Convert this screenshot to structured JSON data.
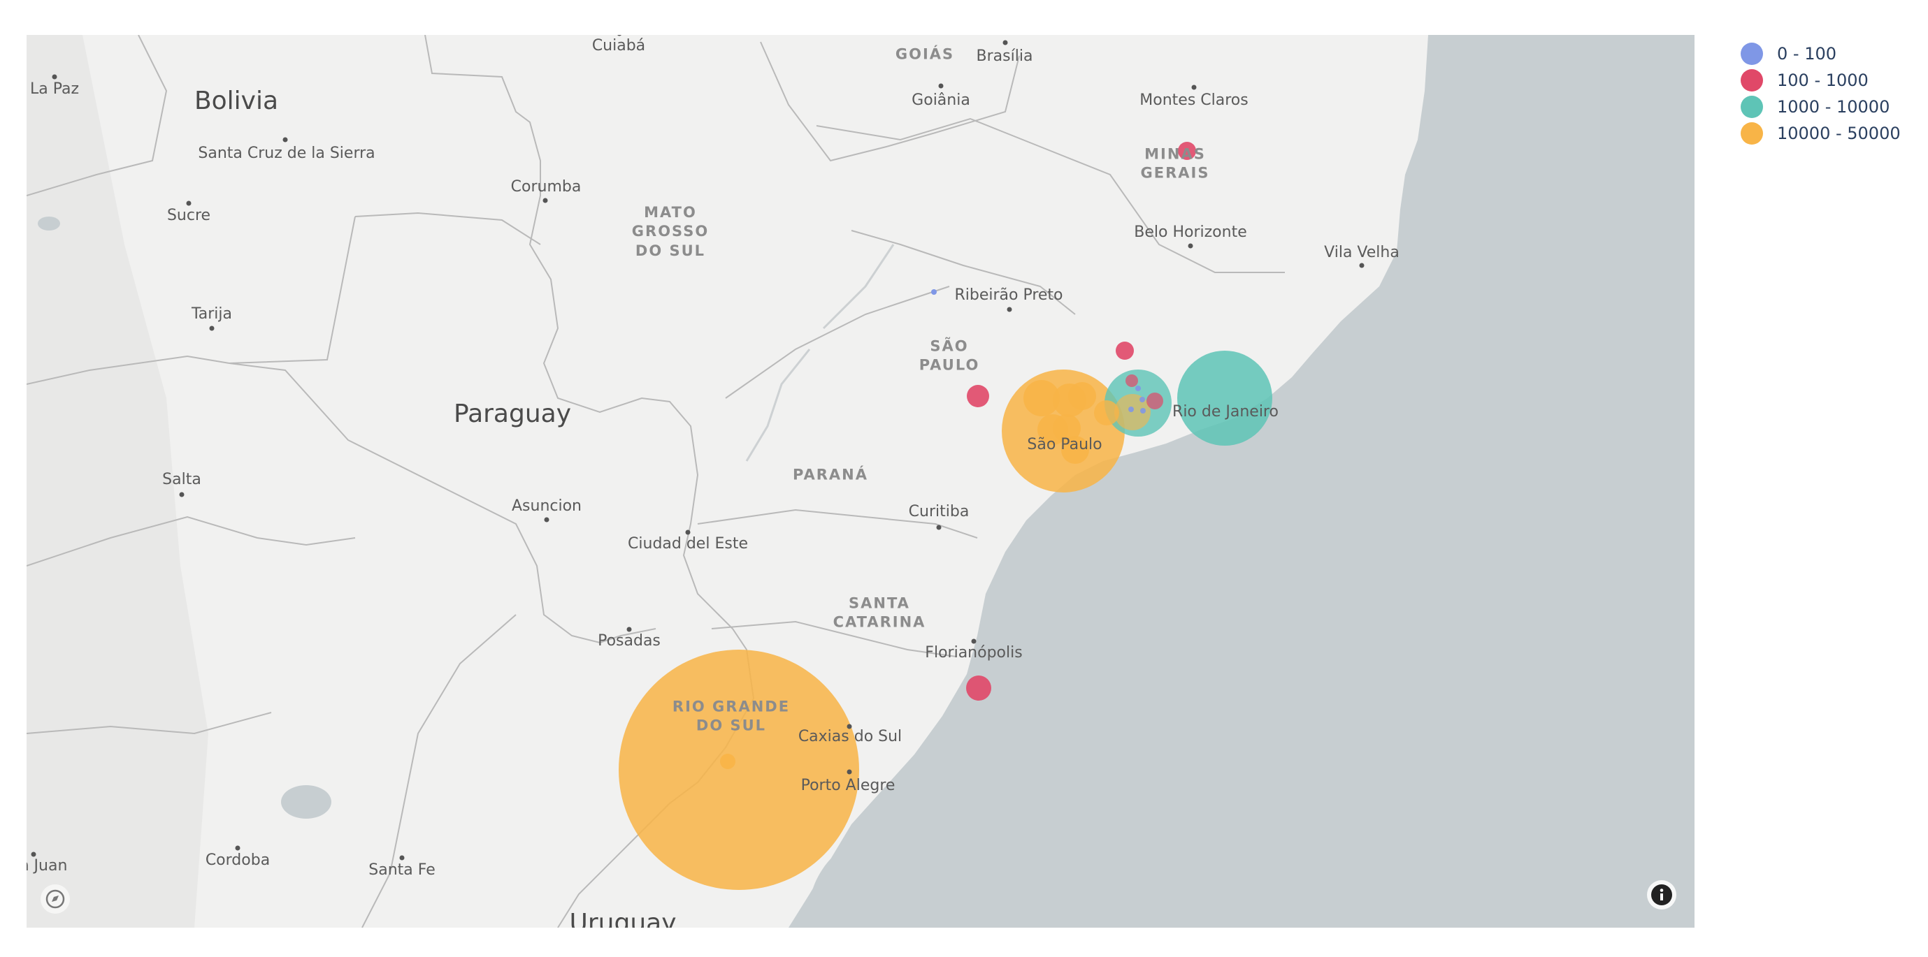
{
  "map": {
    "country_labels": [
      {
        "id": "bolivia",
        "text": "Bolivia"
      },
      {
        "id": "paraguay",
        "text": "Paraguay"
      },
      {
        "id": "uruguay",
        "text": "Uruguay"
      }
    ],
    "state_labels": [
      {
        "id": "goias",
        "text": "GOIÁS"
      },
      {
        "id": "minas-gerais",
        "text": "MINAS\nGERAIS"
      },
      {
        "id": "mato-grosso-do-sul",
        "text": "MATO\nGROSSO\nDO SUL"
      },
      {
        "id": "sao-paulo-state",
        "text": "SÃO\nPAULO"
      },
      {
        "id": "parana",
        "text": "PARANÁ"
      },
      {
        "id": "santa-catarina",
        "text": "SANTA\nCATARINA"
      },
      {
        "id": "rio-grande-do-sul",
        "text": "RIO GRANDE\nDO SUL"
      }
    ],
    "city_labels": [
      {
        "id": "cuiaba",
        "text": "Cuiabá"
      },
      {
        "id": "brasilia",
        "text": "Brasília"
      },
      {
        "id": "la-paz",
        "text": "La Paz"
      },
      {
        "id": "goiania",
        "text": "Goiânia"
      },
      {
        "id": "montes-claros",
        "text": "Montes Claros"
      },
      {
        "id": "santa-cruz",
        "text": "Santa Cruz de la Sierra"
      },
      {
        "id": "corumba",
        "text": "Corumba"
      },
      {
        "id": "sucre",
        "text": "Sucre"
      },
      {
        "id": "belo-horizonte",
        "text": "Belo Horizonte"
      },
      {
        "id": "vila-velha",
        "text": "Vila Velha"
      },
      {
        "id": "ribeirao-preto",
        "text": "Ribeirão Preto"
      },
      {
        "id": "tarija",
        "text": "Tarija"
      },
      {
        "id": "rio-de-janeiro",
        "text": "Rio de Janeiro"
      },
      {
        "id": "sao-paulo",
        "text": "São Paulo"
      },
      {
        "id": "salta",
        "text": "Salta"
      },
      {
        "id": "asuncion",
        "text": "Asuncion"
      },
      {
        "id": "curitiba",
        "text": "Curitiba"
      },
      {
        "id": "ciudad-del-este",
        "text": "Ciudad del Este"
      },
      {
        "id": "posadas",
        "text": "Posadas"
      },
      {
        "id": "florianopolis",
        "text": "Florianópolis"
      },
      {
        "id": "caxias-do-sul",
        "text": "Caxias do Sul"
      },
      {
        "id": "porto-alegre",
        "text": "Porto Alegre"
      },
      {
        "id": "san-juan",
        "text": "n Juan"
      },
      {
        "id": "cordoba",
        "text": "Cordoba"
      },
      {
        "id": "santa-fe",
        "text": "Santa Fe"
      }
    ]
  },
  "legend": {
    "items": [
      {
        "label": "0 - 100",
        "color": "#7f97e6"
      },
      {
        "label": "100 - 1000",
        "color": "#e04868"
      },
      {
        "label": "1000 - 10000",
        "color": "#5ec4b6"
      },
      {
        "label": "10000 - 50000",
        "color": "#f8b447"
      }
    ]
  },
  "controls": {
    "info_icon": "info-icon",
    "map_logo_icon": "mapbox-logo-icon"
  }
}
